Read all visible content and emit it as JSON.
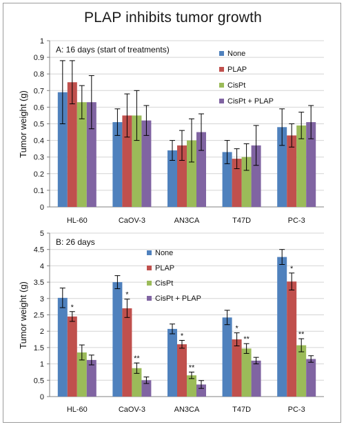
{
  "title": "PLAP inhibits tumor growth",
  "colors": {
    "None": "#4f81bd",
    "PLAP": "#c0504d",
    "CisPt": "#9bbb59",
    "CisPt + PLAP": "#8064a2",
    "grid": "#d4d4d4",
    "axis": "#808080"
  },
  "chart_data": [
    {
      "type": "bar",
      "panel_title": "A: 16 days (start of treatments)",
      "ylabel": "Tumor weight (g)",
      "ylim": [
        0,
        1
      ],
      "yticks": [
        "0",
        "0.1",
        "0.2",
        "0.3",
        "0.4",
        "0.5",
        "0.6",
        "0.7",
        "0.8",
        "0.9",
        "1"
      ],
      "grid": true,
      "legend_position": "top-right",
      "categories": [
        "HL-60",
        "CaOV-3",
        "AN3CA",
        "T47D",
        "PC-3"
      ],
      "series": [
        {
          "name": "None",
          "values": [
            0.69,
            0.51,
            0.34,
            0.33,
            0.48
          ],
          "errors": [
            0.19,
            0.08,
            0.06,
            0.07,
            0.11
          ]
        },
        {
          "name": "PLAP",
          "values": [
            0.75,
            0.55,
            0.37,
            0.29,
            0.43
          ],
          "errors": [
            0.13,
            0.13,
            0.09,
            0.06,
            0.07
          ]
        },
        {
          "name": "CisPt",
          "values": [
            0.63,
            0.55,
            0.4,
            0.3,
            0.49
          ],
          "errors": [
            0.1,
            0.15,
            0.13,
            0.08,
            0.08
          ]
        },
        {
          "name": "CisPt + PLAP",
          "values": [
            0.63,
            0.52,
            0.45,
            0.37,
            0.51
          ],
          "errors": [
            0.16,
            0.09,
            0.11,
            0.12,
            0.1
          ]
        }
      ],
      "annotations": [
        [],
        [],
        [],
        [],
        []
      ]
    },
    {
      "type": "bar",
      "panel_title": "B: 26 days",
      "ylabel": "Tumor weight (g)",
      "ylim": [
        0,
        5
      ],
      "yticks": [
        "0",
        "0.5",
        "1",
        "1.5",
        "2",
        "2.5",
        "3",
        "3.5",
        "4",
        "4.5",
        "5"
      ],
      "grid": true,
      "legend_position": "top-center",
      "categories": [
        "HL-60",
        "CaOV-3",
        "AN3CA",
        "T47D",
        "PC-3"
      ],
      "series": [
        {
          "name": "None",
          "values": [
            3.02,
            3.5,
            2.07,
            2.42,
            4.27
          ],
          "errors": [
            0.3,
            0.2,
            0.15,
            0.22,
            0.23
          ]
        },
        {
          "name": "PLAP",
          "values": [
            2.45,
            2.7,
            1.6,
            1.75,
            3.52
          ],
          "errors": [
            0.15,
            0.28,
            0.12,
            0.2,
            0.26
          ]
        },
        {
          "name": "CisPt",
          "values": [
            1.35,
            0.87,
            0.65,
            1.47,
            1.57
          ],
          "errors": [
            0.23,
            0.16,
            0.1,
            0.15,
            0.2
          ]
        },
        {
          "name": "CisPt + PLAP",
          "values": [
            1.12,
            0.5,
            0.37,
            1.1,
            1.15
          ],
          "errors": [
            0.15,
            0.1,
            0.12,
            0.1,
            0.1
          ]
        }
      ],
      "annotations": [
        [
          "",
          "*",
          "",
          ""
        ],
        [
          "",
          "*",
          "**",
          ""
        ],
        [
          "",
          "*",
          "**",
          ""
        ],
        [
          "",
          "*",
          "**",
          ""
        ],
        [
          "",
          "*",
          "**",
          ""
        ]
      ]
    }
  ]
}
